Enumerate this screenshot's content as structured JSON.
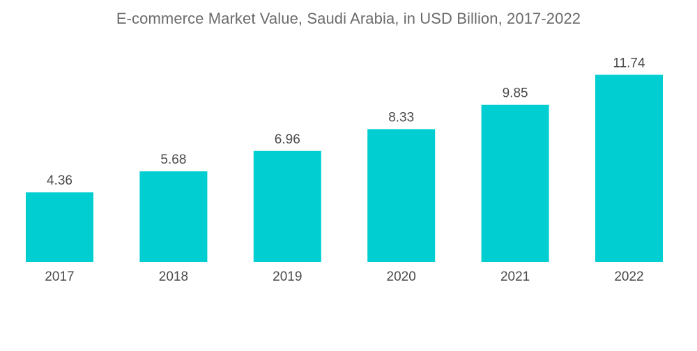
{
  "colors": {
    "bar": "#00CED1",
    "text": "#4a4a4a",
    "title": "#6b6b6b",
    "background": "#ffffff"
  },
  "chart_data": {
    "type": "bar",
    "title": "E-commerce Market Value, Saudi Arabia, in USD Billion, 2017-2022",
    "xlabel": "",
    "ylabel": "",
    "categories": [
      "2017",
      "2018",
      "2019",
      "2020",
      "2021",
      "2022"
    ],
    "values": [
      4.36,
      5.68,
      6.96,
      8.33,
      9.85,
      11.74
    ],
    "value_labels": [
      "4.36",
      "5.68",
      "6.96",
      "8.33",
      "9.85",
      "11.74"
    ],
    "ylim": [
      0,
      12.5
    ],
    "grid": false,
    "legend": "none"
  }
}
